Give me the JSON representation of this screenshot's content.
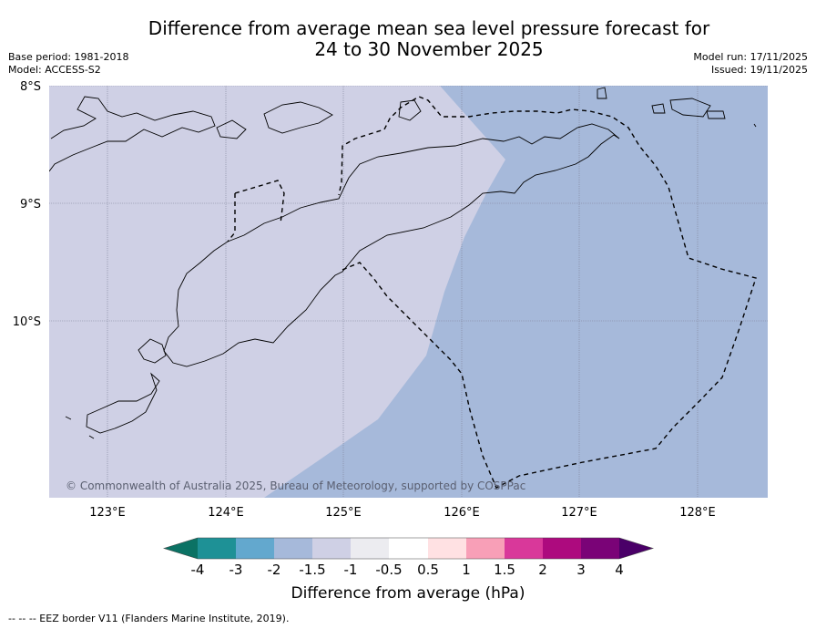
{
  "title_line1": "Difference from average mean sea level pressure forecast for",
  "title_line2": "24 to 30 November 2025",
  "meta": {
    "base_period": "Base period: 1981-2018",
    "model": "Model: ACCESS-S2",
    "model_run": "Model run: 17/11/2025",
    "issued": "Issued: 19/11/2025"
  },
  "map": {
    "lat_labels": [
      "8°S",
      "9°S",
      "10°S"
    ],
    "lon_labels": [
      "123°E",
      "124°E",
      "125°E",
      "126°E",
      "127°E",
      "128°E"
    ],
    "copyright": "© Commonwealth of Australia 2025, Bureau of Meteorology, supported by COSPPac",
    "colors": {
      "band_minus2_minus1_5": "#a6b9da",
      "band_minus1_5_minus1": "#cfd0e5",
      "coastline": "#000000",
      "eez_border": "#000000"
    }
  },
  "colorbar": {
    "ticks": [
      "-4",
      "-3",
      "-2",
      "-1.5",
      "-1",
      "-0.5",
      "0.5",
      "1",
      "1.5",
      "2",
      "3",
      "4"
    ],
    "colors": [
      "#0b7264",
      "#1e9196",
      "#63a8ce",
      "#a6b9da",
      "#cfd0e5",
      "#ececf0",
      "#ffffff",
      "#ffe1e3",
      "#f89fb7",
      "#d9389a",
      "#ad0a7e",
      "#7a0377",
      "#4a0068"
    ],
    "label": "Difference from average (hPa)"
  },
  "footnote": "--  --  -- EEZ border V11 (Flanders Marine Institute, 2019)."
}
